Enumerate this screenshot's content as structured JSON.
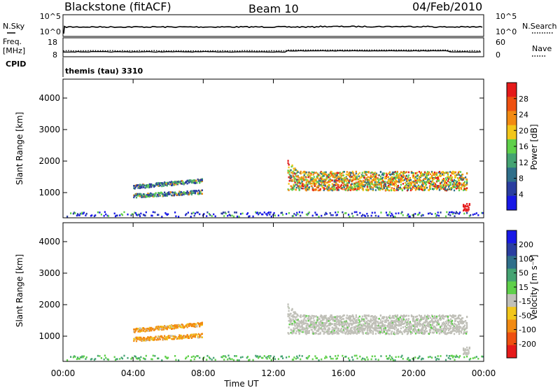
{
  "header": {
    "radar": "Blackstone (fitACF)",
    "beam": "Beam 10",
    "date": "04/Feb/2010"
  },
  "noise_panel": {
    "left_label": "N.Sky",
    "left_ticks": [
      "10^5",
      "10^0"
    ],
    "right_label": "N.Search",
    "right_ticks": [
      "10^5",
      "10^0"
    ]
  },
  "freq_panel": {
    "left_label_1": "Freq.",
    "left_label_2": "[MHz]",
    "left_ticks": [
      "18",
      "8"
    ],
    "right_label": "Nave",
    "right_ticks": [
      "60",
      "0"
    ]
  },
  "cpid_panel": {
    "label": "CPID",
    "text": "themis (tau) 3310"
  },
  "colors": {
    "power_scale": [
      "#1818e6",
      "#2a3ea0",
      "#2f6f8a",
      "#44a372",
      "#5fd04a",
      "#f2c61a",
      "#f28a12",
      "#ee5010",
      "#e51a1a"
    ],
    "velocity_scale": [
      "#1818e6",
      "#2a3ea0",
      "#2f6f8a",
      "#44a372",
      "#5fd04a",
      "#c0c0b8",
      "#f2c61a",
      "#f28a12",
      "#ee5010",
      "#e51a1a"
    ],
    "ground_scatter": "#c0c0b8"
  },
  "chart_data": [
    {
      "type": "heatmap",
      "name": "power",
      "ylabel": "Slant Range [km]",
      "y_ticks": [
        "1000",
        "2000",
        "3000",
        "4000"
      ],
      "ylim": [
        200,
        4600
      ],
      "xlim": [
        0,
        24
      ],
      "colorbar_label": "Power [dB]",
      "colorbar_ticks": [
        "4",
        "8",
        "12",
        "16",
        "20",
        "24",
        "28"
      ],
      "colorbar_range": [
        0,
        32
      ],
      "echo_regions": [
        {
          "t0": 4.0,
          "t1": 7.9,
          "r0": 800,
          "r1": 1350,
          "level": "low-mid"
        },
        {
          "t0": 12.8,
          "t1": 23.0,
          "r0": 1000,
          "r1": 1900,
          "level": "high"
        },
        {
          "t0": 22.8,
          "t1": 23.2,
          "r0": 350,
          "r1": 700,
          "level": "high"
        },
        {
          "t0": 0.0,
          "t1": 24.0,
          "r0": 180,
          "r1": 400,
          "level": "low"
        }
      ]
    },
    {
      "type": "heatmap",
      "name": "velocity",
      "ylabel": "Slant Range [km]",
      "y_ticks": [
        "1000",
        "2000",
        "3000",
        "4000"
      ],
      "ylim": [
        200,
        4600
      ],
      "xlabel": "Time UT",
      "x_ticks": [
        "00:00",
        "04:00",
        "08:00",
        "12:00",
        "16:00",
        "20:00",
        "00:00"
      ],
      "xlim": [
        0,
        24
      ],
      "colorbar_label": "Velocity [m s⁻¹]",
      "colorbar_ticks": [
        "200",
        "100",
        "50",
        "15",
        "-15",
        "-50",
        "-100",
        "-200"
      ],
      "echo_regions": [
        {
          "t0": 4.0,
          "t1": 7.9,
          "r0": 800,
          "r1": 1350,
          "level": "negative"
        },
        {
          "t0": 12.8,
          "t1": 23.0,
          "r0": 1000,
          "r1": 1900,
          "level": "ground"
        },
        {
          "t0": 0.0,
          "t1": 24.0,
          "r0": 180,
          "r1": 400,
          "level": "positive"
        }
      ]
    }
  ]
}
